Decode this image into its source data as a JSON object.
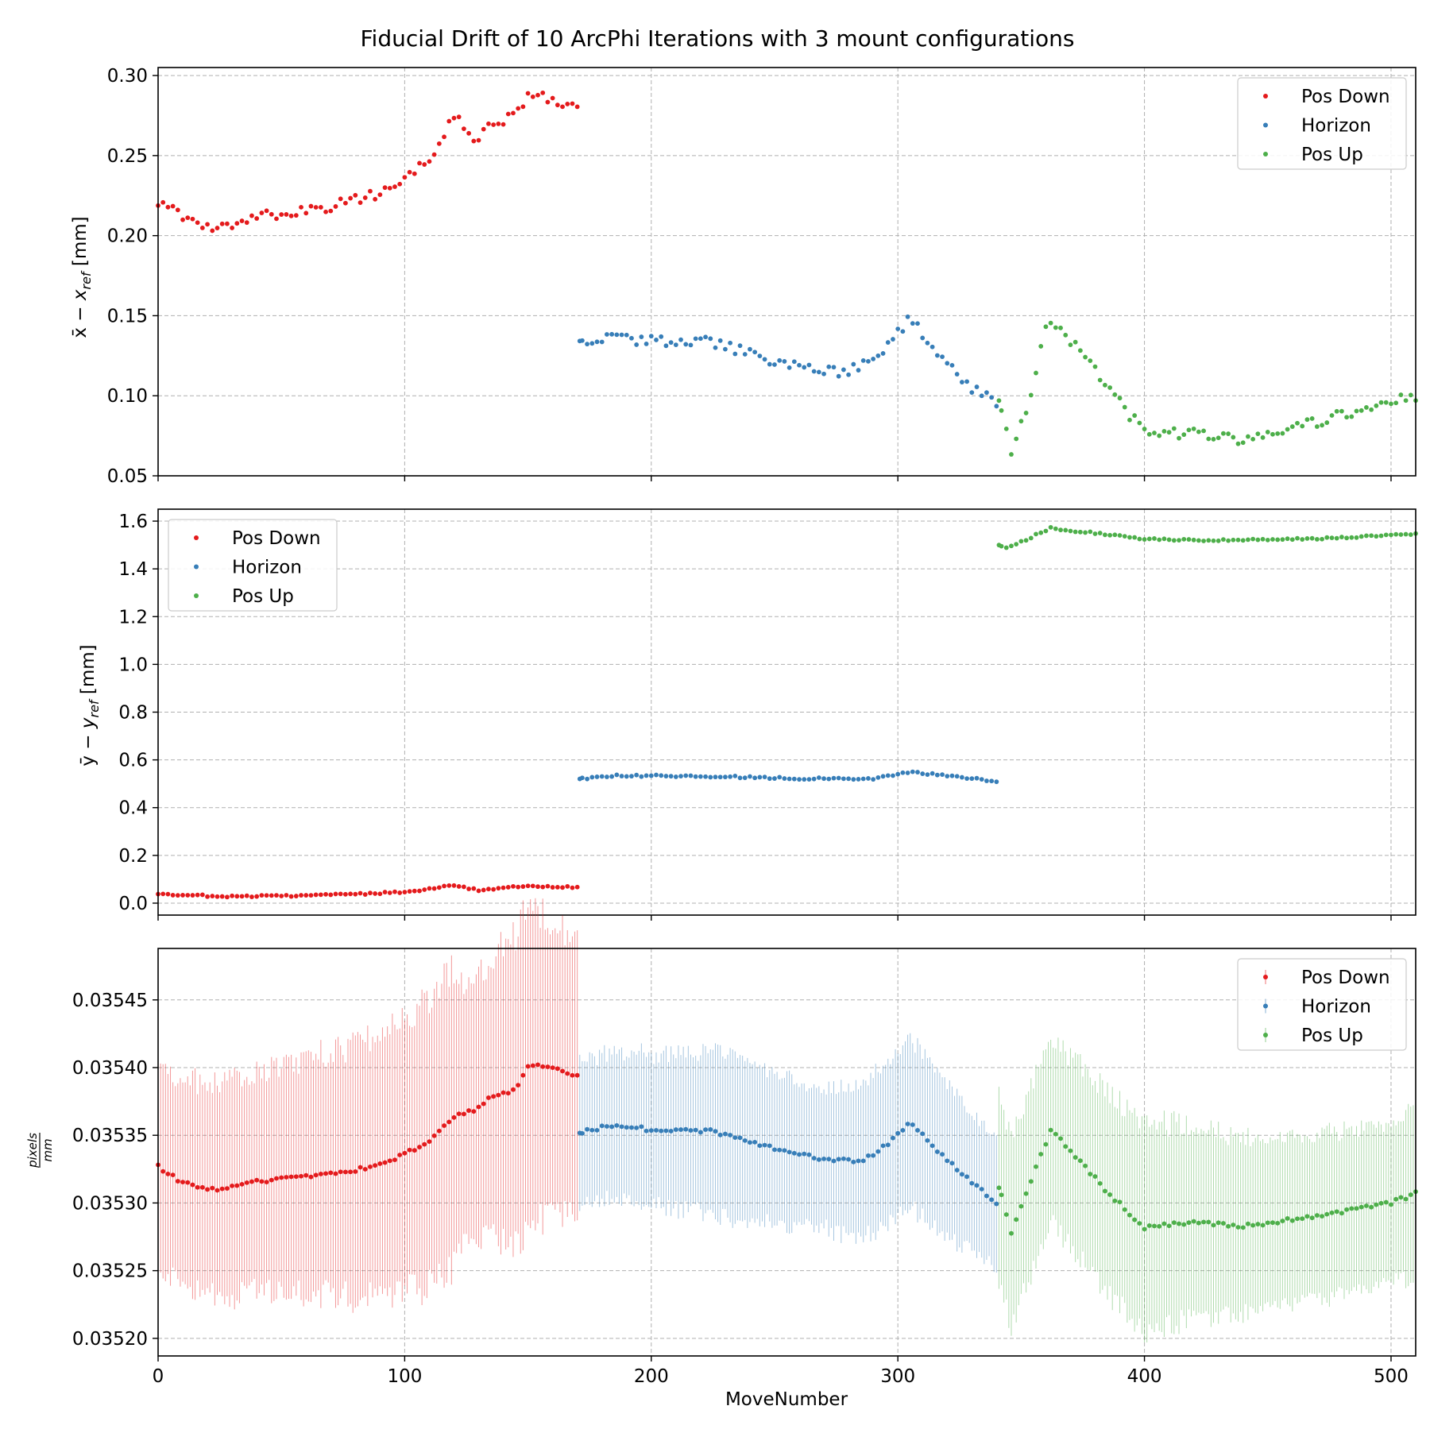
{
  "chart_data": [
    {
      "type": "scatter",
      "title": "Fiducial Drift of 10 ArcPhi Iterations with 3 mount configurations",
      "xlabel": "",
      "ylabel": "x̄ − x_ref [mm]",
      "xlim": [
        0,
        510
      ],
      "ylim": [
        0.05,
        0.305
      ],
      "xticks": [
        0,
        100,
        200,
        300,
        400,
        500
      ],
      "yticks": [
        0.05,
        0.1,
        0.15,
        0.2,
        0.25,
        0.3
      ],
      "ytick_labels": [
        "0.05",
        "0.10",
        "0.15",
        "0.20",
        "0.25",
        "0.30"
      ],
      "grid": true,
      "legend_position": "top-right",
      "series": [
        {
          "name": "Pos Down",
          "color": "#e41a1c",
          "x_range": [
            0,
            170
          ],
          "anchors": [
            [
              0,
              0.221
            ],
            [
              10,
              0.211
            ],
            [
              20,
              0.207
            ],
            [
              26,
              0.204
            ],
            [
              35,
              0.211
            ],
            [
              50,
              0.214
            ],
            [
              70,
              0.218
            ],
            [
              90,
              0.226
            ],
            [
              100,
              0.236
            ],
            [
              110,
              0.248
            ],
            [
              120,
              0.275
            ],
            [
              128,
              0.258
            ],
            [
              135,
              0.27
            ],
            [
              145,
              0.275
            ],
            [
              150,
              0.288
            ],
            [
              160,
              0.285
            ],
            [
              170,
              0.278
            ]
          ]
        },
        {
          "name": "Horizon",
          "color": "#377eb8",
          "x_range": [
            171,
            340
          ],
          "anchors": [
            [
              171,
              0.134
            ],
            [
              185,
              0.137
            ],
            [
              200,
              0.134
            ],
            [
              225,
              0.134
            ],
            [
              250,
              0.121
            ],
            [
              265,
              0.116
            ],
            [
              280,
              0.115
            ],
            [
              290,
              0.122
            ],
            [
              297,
              0.132
            ],
            [
              305,
              0.149
            ],
            [
              315,
              0.13
            ],
            [
              330,
              0.105
            ],
            [
              340,
              0.096
            ]
          ]
        },
        {
          "name": "Pos Up",
          "color": "#4daf4a",
          "x_range": [
            341,
            510
          ],
          "anchors": [
            [
              341,
              0.097
            ],
            [
              346,
              0.065
            ],
            [
              352,
              0.09
            ],
            [
              361,
              0.149
            ],
            [
              370,
              0.135
            ],
            [
              385,
              0.105
            ],
            [
              400,
              0.077
            ],
            [
              420,
              0.076
            ],
            [
              440,
              0.072
            ],
            [
              460,
              0.08
            ],
            [
              480,
              0.088
            ],
            [
              500,
              0.096
            ],
            [
              510,
              0.1
            ]
          ]
        }
      ]
    },
    {
      "type": "scatter",
      "title": "",
      "xlabel": "",
      "ylabel": "ȳ − y_ref [mm]",
      "xlim": [
        0,
        510
      ],
      "ylim": [
        -0.05,
        1.65
      ],
      "xticks": [
        0,
        100,
        200,
        300,
        400,
        500
      ],
      "yticks": [
        0.0,
        0.2,
        0.4,
        0.6,
        0.8,
        1.0,
        1.2,
        1.4,
        1.6
      ],
      "ytick_labels": [
        "0.0",
        "0.2",
        "0.4",
        "0.6",
        "0.8",
        "1.0",
        "1.2",
        "1.4",
        "1.6"
      ],
      "grid": true,
      "legend_position": "top-left",
      "series": [
        {
          "name": "Pos Down",
          "color": "#e41a1c",
          "x_range": [
            0,
            170
          ],
          "anchors": [
            [
              0,
              0.04
            ],
            [
              25,
              0.028
            ],
            [
              60,
              0.032
            ],
            [
              100,
              0.045
            ],
            [
              120,
              0.075
            ],
            [
              130,
              0.055
            ],
            [
              150,
              0.072
            ],
            [
              170,
              0.065
            ]
          ]
        },
        {
          "name": "Horizon",
          "color": "#377eb8",
          "x_range": [
            171,
            340
          ],
          "anchors": [
            [
              171,
              0.52
            ],
            [
              185,
              0.535
            ],
            [
              230,
              0.53
            ],
            [
              260,
              0.522
            ],
            [
              290,
              0.522
            ],
            [
              305,
              0.548
            ],
            [
              320,
              0.535
            ],
            [
              340,
              0.51
            ]
          ]
        },
        {
          "name": "Pos Up",
          "color": "#4daf4a",
          "x_range": [
            341,
            510
          ],
          "anchors": [
            [
              341,
              1.5
            ],
            [
              345,
              1.49
            ],
            [
              362,
              1.57
            ],
            [
              380,
              1.55
            ],
            [
              400,
              1.525
            ],
            [
              420,
              1.52
            ],
            [
              450,
              1.523
            ],
            [
              480,
              1.53
            ],
            [
              510,
              1.545
            ]
          ]
        }
      ]
    },
    {
      "type": "scatter",
      "title": "",
      "xlabel": "MoveNumber",
      "ylabel": "pixels / mm",
      "xlim": [
        0,
        510
      ],
      "ylim": [
        0.035187,
        0.035488
      ],
      "xticks": [
        0,
        100,
        200,
        300,
        400,
        500
      ],
      "xtick_labels": [
        "0",
        "100",
        "200",
        "300",
        "400",
        "500"
      ],
      "yticks": [
        0.0352,
        0.03525,
        0.0353,
        0.03535,
        0.0354,
        0.03545
      ],
      "ytick_labels": [
        "0.03520",
        "0.03525",
        "0.03530",
        "0.03535",
        "0.03540",
        "0.03545"
      ],
      "grid": true,
      "legend_position": "top-right",
      "error_bars": true,
      "series": [
        {
          "name": "Pos Down",
          "color": "#e41a1c",
          "x_range": [
            0,
            170
          ],
          "anchors": [
            [
              0,
              0.035327
            ],
            [
              10,
              0.035315
            ],
            [
              25,
              0.035309
            ],
            [
              40,
              0.035316
            ],
            [
              60,
              0.035319
            ],
            [
              80,
              0.035324
            ],
            [
              95,
              0.035332
            ],
            [
              110,
              0.035345
            ],
            [
              120,
              0.035364
            ],
            [
              128,
              0.035368
            ],
            [
              135,
              0.035378
            ],
            [
              145,
              0.035383
            ],
            [
              150,
              0.035402
            ],
            [
              160,
              0.0354
            ],
            [
              170,
              0.035394
            ]
          ],
          "error_anchors": [
            [
              0,
              7.5e-05
            ],
            [
              50,
              8.3e-05
            ],
            [
              100,
              0.0001
            ],
            [
              118,
              0.000113
            ],
            [
              125,
              9.5e-05
            ],
            [
              150,
              0.00012
            ],
            [
              170,
              0.000103
            ]
          ]
        },
        {
          "name": "Horizon",
          "color": "#377eb8",
          "x_range": [
            171,
            340
          ],
          "anchors": [
            [
              171,
              0.035352
            ],
            [
              185,
              0.035358
            ],
            [
              200,
              0.035354
            ],
            [
              225,
              0.035353
            ],
            [
              250,
              0.03534
            ],
            [
              265,
              0.035334
            ],
            [
              285,
              0.03533
            ],
            [
              296,
              0.035344
            ],
            [
              305,
              0.03536
            ],
            [
              318,
              0.035335
            ],
            [
              340,
              0.0353
            ]
          ],
          "error_anchors": [
            [
              171,
              5.2e-05
            ],
            [
              230,
              6e-05
            ],
            [
              270,
              5.2e-05
            ],
            [
              303,
              6.3e-05
            ],
            [
              340,
              4.7e-05
            ]
          ]
        },
        {
          "name": "Pos Up",
          "color": "#4daf4a",
          "x_range": [
            341,
            510
          ],
          "anchors": [
            [
              341,
              0.035312
            ],
            [
              346,
              0.035278
            ],
            [
              352,
              0.035307
            ],
            [
              362,
              0.035354
            ],
            [
              372,
              0.035335
            ],
            [
              385,
              0.035308
            ],
            [
              400,
              0.035282
            ],
            [
              420,
              0.035286
            ],
            [
              440,
              0.035283
            ],
            [
              470,
              0.03529
            ],
            [
              500,
              0.0353
            ],
            [
              510,
              0.035307
            ]
          ],
          "error_anchors": [
            [
              341,
              7e-05
            ],
            [
              362,
              6.8e-05
            ],
            [
              400,
              7.8e-05
            ],
            [
              450,
              6.2e-05
            ],
            [
              510,
              6e-05
            ]
          ]
        }
      ]
    }
  ]
}
